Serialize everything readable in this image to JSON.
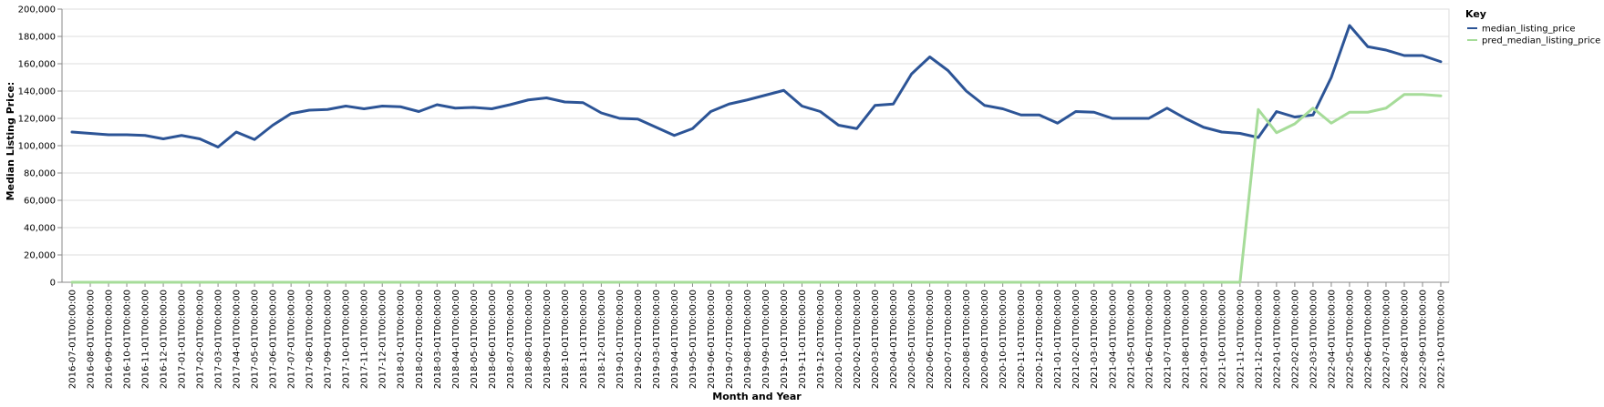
{
  "chart_data": {
    "type": "line",
    "xlabel": "Month and Year",
    "ylabel": "Median Listing Price:",
    "ylim": [
      0,
      200000
    ],
    "yticks": [
      "0",
      "20,000",
      "40,000",
      "60,000",
      "80,000",
      "100,000",
      "120,000",
      "140,000",
      "160,000",
      "180,000",
      "200,000"
    ],
    "grid": true,
    "legend_title": "Key",
    "legend_position": "top-right",
    "x": [
      "2016-07-01T00:00:00",
      "2016-08-01T00:00:00",
      "2016-09-01T00:00:00",
      "2016-10-01T00:00:00",
      "2016-11-01T00:00:00",
      "2016-12-01T00:00:00",
      "2017-01-01T00:00:00",
      "2017-02-01T00:00:00",
      "2017-03-01T00:00:00",
      "2017-04-01T00:00:00",
      "2017-05-01T00:00:00",
      "2017-06-01T00:00:00",
      "2017-07-01T00:00:00",
      "2017-08-01T00:00:00",
      "2017-09-01T00:00:00",
      "2017-10-01T00:00:00",
      "2017-11-01T00:00:00",
      "2017-12-01T00:00:00",
      "2018-01-01T00:00:00",
      "2018-02-01T00:00:00",
      "2018-03-01T00:00:00",
      "2018-04-01T00:00:00",
      "2018-05-01T00:00:00",
      "2018-06-01T00:00:00",
      "2018-07-01T00:00:00",
      "2018-08-01T00:00:00",
      "2018-09-01T00:00:00",
      "2018-10-01T00:00:00",
      "2018-11-01T00:00:00",
      "2018-12-01T00:00:00",
      "2019-01-01T00:00:00",
      "2019-02-01T00:00:00",
      "2019-03-01T00:00:00",
      "2019-04-01T00:00:00",
      "2019-05-01T00:00:00",
      "2019-06-01T00:00:00",
      "2019-07-01T00:00:00",
      "2019-08-01T00:00:00",
      "2019-09-01T00:00:00",
      "2019-10-01T00:00:00",
      "2019-11-01T00:00:00",
      "2019-12-01T00:00:00",
      "2020-01-01T00:00:00",
      "2020-02-01T00:00:00",
      "2020-03-01T00:00:00",
      "2020-04-01T00:00:00",
      "2020-05-01T00:00:00",
      "2020-06-01T00:00:00",
      "2020-07-01T00:00:00",
      "2020-08-01T00:00:00",
      "2020-09-01T00:00:00",
      "2020-10-01T00:00:00",
      "2020-11-01T00:00:00",
      "2020-12-01T00:00:00",
      "2021-01-01T00:00:00",
      "2021-02-01T00:00:00",
      "2021-03-01T00:00:00",
      "2021-04-01T00:00:00",
      "2021-05-01T00:00:00",
      "2021-06-01T00:00:00",
      "2021-07-01T00:00:00",
      "2021-08-01T00:00:00",
      "2021-09-01T00:00:00",
      "2021-10-01T00:00:00",
      "2021-11-01T00:00:00",
      "2021-12-01T00:00:00",
      "2022-01-01T00:00:00",
      "2022-02-01T00:00:00",
      "2022-03-01T00:00:00",
      "2022-04-01T00:00:00",
      "2022-05-01T00:00:00",
      "2022-06-01T00:00:00",
      "2022-07-01T00:00:00",
      "2022-08-01T00:00:00",
      "2022-09-01T00:00:00",
      "2022-10-01T00:00:00"
    ],
    "series": [
      {
        "name": "median_listing_price",
        "color": "#2c5496",
        "values": [
          110000,
          109000,
          108000,
          108000,
          107500,
          105000,
          107500,
          105000,
          99000,
          110000,
          104500,
          115000,
          123500,
          126000,
          126500,
          129000,
          127000,
          129000,
          128500,
          125000,
          130000,
          127500,
          128000,
          127000,
          130000,
          133500,
          135000,
          132000,
          131500,
          124000,
          120000,
          119500,
          113500,
          107500,
          112500,
          125000,
          130500,
          133500,
          137000,
          140500,
          129000,
          125000,
          115000,
          112500,
          129500,
          130500,
          152500,
          165000,
          155000,
          140000,
          129500,
          127000,
          122500,
          122500,
          116500,
          125000,
          124500,
          120000,
          120000,
          120000,
          127500,
          120000,
          113500,
          110000,
          109000,
          106000,
          125000,
          121000,
          122500,
          150000,
          188000,
          172500,
          170000,
          166000,
          166000,
          161500
        ]
      },
      {
        "name": "pred_median_listing_price",
        "color": "#a6dc99",
        "values": [
          0,
          0,
          0,
          0,
          0,
          0,
          0,
          0,
          0,
          0,
          0,
          0,
          0,
          0,
          0,
          0,
          0,
          0,
          0,
          0,
          0,
          0,
          0,
          0,
          0,
          0,
          0,
          0,
          0,
          0,
          0,
          0,
          0,
          0,
          0,
          0,
          0,
          0,
          0,
          0,
          0,
          0,
          0,
          0,
          0,
          0,
          0,
          0,
          0,
          0,
          0,
          0,
          0,
          0,
          0,
          0,
          0,
          0,
          0,
          0,
          0,
          0,
          0,
          0,
          0,
          126500,
          109500,
          116000,
          127500,
          116500,
          124500,
          124500,
          127500,
          137500,
          137500,
          136500
        ]
      }
    ]
  }
}
